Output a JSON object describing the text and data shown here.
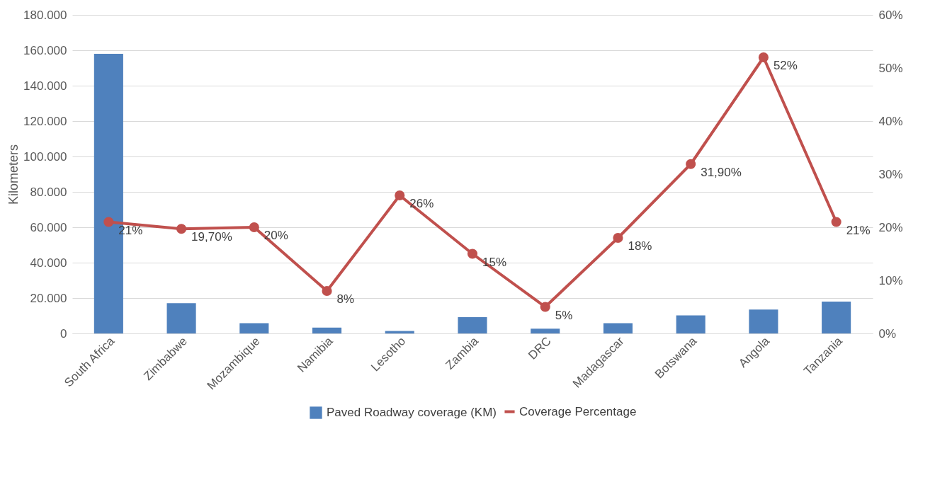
{
  "chart_data": {
    "type": "bar",
    "ylabel": "Kilometers",
    "categories": [
      "South Africa",
      "Zimbabwe",
      "Mozambique",
      "Namibia",
      "Lesotho",
      "Zambia",
      "DRC",
      "Madagascar",
      "Botswana",
      "Angola",
      "Tanzania"
    ],
    "series": [
      {
        "name": "Paved Roadway coverage (KM)",
        "color": "#4f81bd",
        "values": [
          158000,
          17100,
          5800,
          3300,
          1400,
          9200,
          2700,
          5800,
          10200,
          13500,
          18000
        ]
      },
      {
        "name": "Coverage Percentage",
        "type": "line",
        "axis": "y2",
        "color": "#c0504d",
        "values": [
          21,
          19.7,
          20,
          8,
          26,
          15,
          5,
          18,
          31.9,
          52,
          21
        ],
        "value_labels": [
          "21%",
          "19,70%",
          "20%",
          "8%",
          "26%",
          "15%",
          "5%",
          "18%",
          "31,90%",
          "52%",
          "21%"
        ]
      }
    ],
    "ylim": [
      0,
      180000
    ],
    "yticks": [
      {
        "value": 0,
        "label": "0"
      },
      {
        "value": 20000,
        "label": "20.000"
      },
      {
        "value": 40000,
        "label": "40.000"
      },
      {
        "value": 60000,
        "label": "60.000"
      },
      {
        "value": 80000,
        "label": "80.000"
      },
      {
        "value": 100000,
        "label": "100.000"
      },
      {
        "value": 120000,
        "label": "120.000"
      },
      {
        "value": 140000,
        "label": "140.000"
      },
      {
        "value": 160000,
        "label": "160.000"
      },
      {
        "value": 180000,
        "label": "180.000"
      }
    ],
    "y2lim": [
      0,
      60
    ],
    "y2ticks": [
      {
        "value": 0,
        "label": "0%"
      },
      {
        "value": 10,
        "label": "10%"
      },
      {
        "value": 20,
        "label": "20%"
      },
      {
        "value": 30,
        "label": "30%"
      },
      {
        "value": 40,
        "label": "40%"
      },
      {
        "value": 50,
        "label": "50%"
      },
      {
        "value": 60,
        "label": "60%"
      }
    ],
    "grid": "y",
    "legend": "bottom",
    "marker": "circle"
  }
}
